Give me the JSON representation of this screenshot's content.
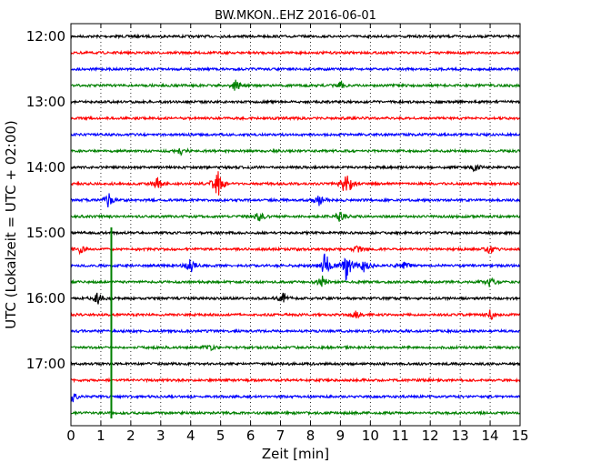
{
  "chart_data": {
    "type": "line",
    "title": "BW.MKON..EHZ 2016-06-01",
    "xlabel": "Zeit  [min]",
    "ylabel": "UTC (Lokalzeit = UTC + 02:00)",
    "xlim": [
      0,
      15
    ],
    "x_ticks": [
      "0",
      "1",
      "2",
      "3",
      "4",
      "5",
      "6",
      "7",
      "8",
      "9",
      "10",
      "11",
      "12",
      "13",
      "14",
      "15"
    ],
    "y_ticks": [
      "12:00",
      "13:00",
      "14:00",
      "15:00",
      "16:00",
      "17:00"
    ],
    "grid": "vertical dotted",
    "trace_colors": [
      "#000000",
      "#ff0000",
      "#0000ff",
      "#008000"
    ],
    "traces": [
      {
        "start": "12:00",
        "color": "#000000",
        "events": []
      },
      {
        "start": "12:15",
        "color": "#ff0000",
        "events": []
      },
      {
        "start": "12:30",
        "color": "#0000ff",
        "events": []
      },
      {
        "start": "12:45",
        "color": "#008000",
        "events": [
          {
            "t": 5.5,
            "amp": 0.3
          },
          {
            "t": 9.0,
            "amp": 0.2
          }
        ]
      },
      {
        "start": "13:00",
        "color": "#000000",
        "events": []
      },
      {
        "start": "13:15",
        "color": "#ff0000",
        "events": []
      },
      {
        "start": "13:30",
        "color": "#0000ff",
        "events": []
      },
      {
        "start": "13:45",
        "color": "#008000",
        "events": [
          {
            "t": 3.7,
            "amp": 0.2
          }
        ]
      },
      {
        "start": "14:00",
        "color": "#000000",
        "events": [
          {
            "t": 13.5,
            "amp": 0.2
          }
        ]
      },
      {
        "start": "14:15",
        "color": "#ff0000",
        "events": [
          {
            "t": 2.9,
            "amp": 0.3
          },
          {
            "t": 4.9,
            "amp": 0.8
          },
          {
            "t": 9.2,
            "amp": 0.9
          }
        ]
      },
      {
        "start": "14:30",
        "color": "#0000ff",
        "events": [
          {
            "t": 1.25,
            "amp": 0.4
          },
          {
            "t": 8.3,
            "amp": 0.3
          }
        ]
      },
      {
        "start": "14:45",
        "color": "#008000",
        "events": [
          {
            "t": 6.3,
            "amp": 0.3
          },
          {
            "t": 9.0,
            "amp": 0.3
          }
        ]
      },
      {
        "start": "15:00",
        "color": "#000000",
        "events": []
      },
      {
        "start": "15:15",
        "color": "#ff0000",
        "events": [
          {
            "t": 0.3,
            "amp": 0.2
          },
          {
            "t": 9.6,
            "amp": 0.2
          },
          {
            "t": 14.0,
            "amp": 0.2
          }
        ]
      },
      {
        "start": "15:30",
        "color": "#0000ff",
        "events": [
          {
            "t": 4.0,
            "amp": 0.4
          },
          {
            "t": 8.5,
            "amp": 0.7
          },
          {
            "t": 9.2,
            "amp": 0.9
          },
          {
            "t": 9.8,
            "amp": 0.5
          },
          {
            "t": 11.1,
            "amp": 0.3
          }
        ]
      },
      {
        "start": "15:45",
        "color": "#008000",
        "events": [
          {
            "t": 8.4,
            "amp": 0.3
          },
          {
            "t": 14.0,
            "amp": 0.3
          }
        ]
      },
      {
        "start": "16:00",
        "color": "#000000",
        "events": [
          {
            "t": 0.9,
            "amp": 0.3
          },
          {
            "t": 7.1,
            "amp": 0.3
          }
        ]
      },
      {
        "start": "16:15",
        "color": "#ff0000",
        "events": [
          {
            "t": 9.5,
            "amp": 0.2
          },
          {
            "t": 14.0,
            "amp": 0.3
          }
        ]
      },
      {
        "start": "16:30",
        "color": "#0000ff",
        "events": []
      },
      {
        "start": "16:45",
        "color": "#008000",
        "events": [
          {
            "t": 4.6,
            "amp": 0.2
          }
        ]
      },
      {
        "start": "17:00",
        "color": "#000000",
        "events": []
      },
      {
        "start": "17:15",
        "color": "#ff0000",
        "events": []
      },
      {
        "start": "17:30",
        "color": "#0000ff",
        "events": [
          {
            "t": 0.05,
            "amp": 0.3
          }
        ]
      },
      {
        "start": "17:45",
        "color": "#008000",
        "events": []
      }
    ],
    "spike": {
      "t": 1.35,
      "from_trace": 12,
      "to_trace": 23,
      "color": "#008000"
    }
  }
}
